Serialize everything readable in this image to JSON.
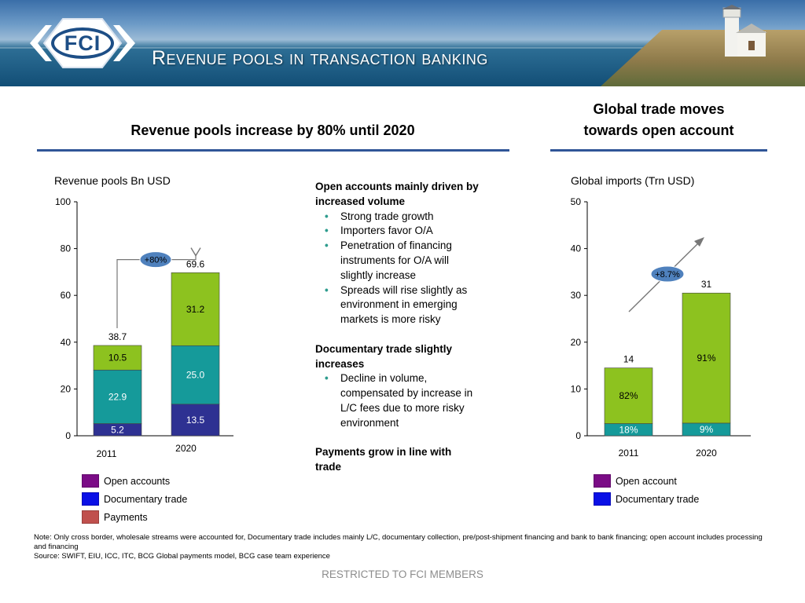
{
  "header": {
    "logo_text": "FCI",
    "title": "Revenue pools in transaction banking"
  },
  "left_section": {
    "heading": "Revenue pools increase by 80% until 2020",
    "chart_title": "Revenue pools Bn USD",
    "growth_label": "+80%"
  },
  "right_section": {
    "heading_line1": "Global trade moves",
    "heading_line2": "towards open account",
    "chart_title": "Global imports (Trn USD)",
    "growth_label": "+8.7%"
  },
  "middle_text": {
    "block1_heading_line1": "Open accounts mainly driven by",
    "block1_heading_line2": "increased volume",
    "block1_bullets": [
      [
        "Strong trade growth"
      ],
      [
        "Importers favor O/A"
      ],
      [
        "Penetration of financing",
        "instruments for O/A will",
        "slightly increase"
      ],
      [
        "Spreads will rise slightly as",
        "environment in emerging",
        "markets is more risky"
      ]
    ],
    "block2_heading_line1": "Documentary trade slightly",
    "block2_heading_line2": "increases",
    "block2_bullets": [
      [
        "Decline in volume,",
        "compensated by increase in",
        "L/C fees due to more risky",
        "environment"
      ]
    ],
    "block3_heading_line1": "Payments grow in line with",
    "block3_heading_line2": "trade"
  },
  "legend_left": [
    {
      "label": "Open accounts",
      "color": "#7b0c86"
    },
    {
      "label": "Documentary trade",
      "color": "#0a10e6"
    },
    {
      "label": "Payments",
      "color": "#c0504d"
    }
  ],
  "legend_right": [
    {
      "label": "Open account",
      "color": "#7b0c86"
    },
    {
      "label": "Documentary trade",
      "color": "#0a10e6"
    }
  ],
  "note": "Note: Only cross border, wholesale streams were accounted for, Documentary trade includes mainly L/C, documentary collection, pre/post-shipment financing and bank to bank financing; open account includes processing and financing",
  "source": "Source: SWIFT, EIU, ICC, ITC, BCG Global payments model, BCG case team experience",
  "footer": "RESTRICTED TO FCI MEMBERS",
  "chart_data": [
    {
      "type": "bar",
      "stacked": true,
      "title": "Revenue pools Bn USD",
      "categories": [
        "2011",
        "2020"
      ],
      "series": [
        {
          "values": [
            5.2,
            13.5
          ],
          "color": "#2e3192",
          "label_color": "#ffffff"
        },
        {
          "values": [
            22.9,
            25.0
          ],
          "color": "#159a9a",
          "label_color": "#ffffff"
        },
        {
          "values": [
            10.5,
            31.2
          ],
          "color": "#8dc21f",
          "label_color": "#000000"
        }
      ],
      "value_labels": [
        [
          "5.2",
          "22.9",
          "10.5"
        ],
        [
          "13.5",
          "25.0",
          "31.2"
        ]
      ],
      "totals": [
        "38.7",
        "69.6"
      ],
      "ylim": [
        0,
        100
      ],
      "yticks": [
        0,
        20,
        40,
        60,
        80,
        100
      ],
      "grid": false,
      "annotation": "+80%"
    },
    {
      "type": "bar",
      "stacked": true,
      "title": "Global imports (Trn USD)",
      "categories": [
        "2011",
        "2020"
      ],
      "totals_values": [
        14.5,
        30.5
      ],
      "series": [
        {
          "values": [
            2.6,
            2.7
          ],
          "color": "#159a9a",
          "label_color": "#ffffff"
        },
        {
          "values": [
            11.9,
            27.8
          ],
          "color": "#8dc21f",
          "label_color": "#000000"
        }
      ],
      "value_labels": [
        [
          "18%",
          "82%"
        ],
        [
          "9%",
          "91%"
        ]
      ],
      "totals": [
        "14",
        "31"
      ],
      "ylim": [
        0,
        50
      ],
      "yticks": [
        0,
        10,
        20,
        30,
        40,
        50
      ],
      "grid": false,
      "annotation": "+8.7%"
    }
  ]
}
